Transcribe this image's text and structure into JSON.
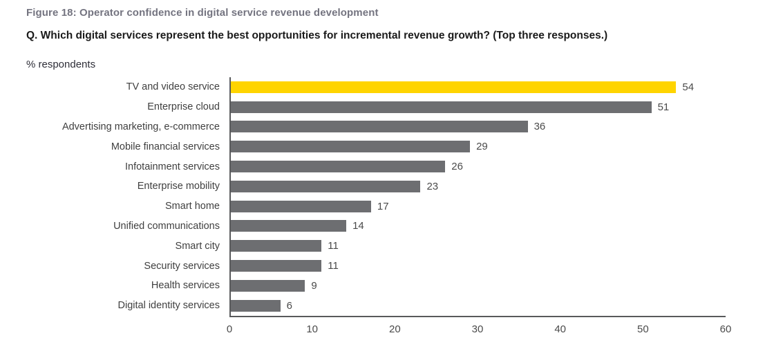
{
  "figure": {
    "title": "Figure 18: Operator confidence in digital service revenue development",
    "question": "Q. Which digital services represent the best opportunities for incremental revenue growth? (Top three responses.)",
    "axis_label": "% respondents"
  },
  "colors": {
    "highlight_bar": "#ffd400",
    "bar": "#6d6e71",
    "axis": "#58595b",
    "title_gray": "#747480"
  },
  "chart_data": {
    "type": "bar",
    "orientation": "horizontal",
    "title": "Operator confidence in digital service revenue development",
    "xlabel": "",
    "ylabel": "% respondents",
    "categories": [
      "TV and video service",
      "Enterprise cloud",
      "Advertising marketing, e-commerce",
      "Mobile financial services",
      "Infotainment services",
      "Enterprise mobility",
      "Smart home",
      "Unified communications",
      "Smart city",
      "Security services",
      "Health services",
      "Digital identity services"
    ],
    "values": [
      54,
      51,
      36,
      29,
      26,
      23,
      17,
      14,
      11,
      11,
      9,
      6
    ],
    "highlight_index": 0,
    "xlim": [
      0,
      60
    ],
    "xticks": [
      0,
      10,
      20,
      30,
      40,
      50,
      60
    ],
    "grid": false,
    "legend": false,
    "value_labels": true
  }
}
